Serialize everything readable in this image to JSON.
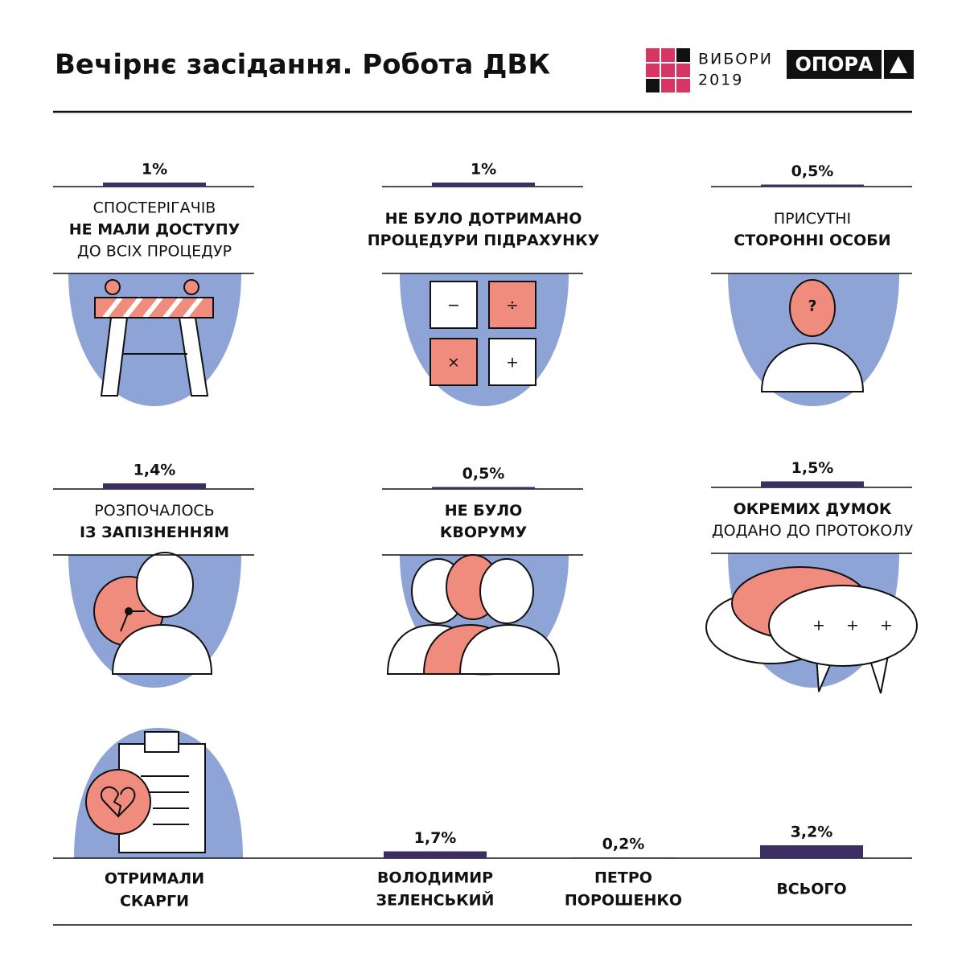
{
  "header": {
    "title": "Вечірнє засідання. Робота ДВК",
    "logo_line1": "ВИБОРИ",
    "logo_line2": "2019",
    "brand": "ОПОРА"
  },
  "items": [
    {
      "value": 1,
      "value_label": "1%",
      "lines": [
        "СПОСТЕРІГАЧІВ",
        "НЕ МАЛИ ДОСТУПУ",
        "ДО ВСІХ ПРОЦЕДУР"
      ],
      "bold": [
        false,
        true,
        false
      ]
    },
    {
      "value": 1,
      "value_label": "1%",
      "lines": [
        "НЕ БУЛО ДОТРИМАНО",
        "ПРОЦЕДУРИ ПІДРАХУНКУ"
      ],
      "bold": [
        true,
        true
      ]
    },
    {
      "value": 0.5,
      "value_label": "0,5%",
      "lines": [
        "ПРИСУТНІ",
        "СТОРОННІ ОСОБИ"
      ],
      "bold": [
        false,
        true
      ]
    },
    {
      "value": 1.4,
      "value_label": "1,4%",
      "lines": [
        "РОЗПОЧАЛОСЬ",
        "ІЗ ЗАПІЗНЕННЯМ"
      ],
      "bold": [
        false,
        true
      ]
    },
    {
      "value": 0.5,
      "value_label": "0,5%",
      "lines": [
        "НЕ БУЛО",
        "КВОРУМУ"
      ],
      "bold": [
        true,
        true
      ]
    },
    {
      "value": 1.5,
      "value_label": "1,5%",
      "lines": [
        "ОКРЕМИХ ДУМОК",
        "ДОДАНО ДО ПРОТОКОЛУ"
      ],
      "bold": [
        true,
        false
      ]
    }
  ],
  "complaints": {
    "lines": [
      "ОТРИМАЛИ",
      "СКАРГИ"
    ],
    "breakdown": [
      {
        "value": 1.7,
        "value_label": "1,7%",
        "lines": [
          "ВОЛОДИМИР",
          "ЗЕЛЕНСЬКИЙ"
        ]
      },
      {
        "value": 0.2,
        "value_label": "0,2%",
        "lines": [
          "ПЕТРО",
          "ПОРОШЕНКО"
        ]
      },
      {
        "value": 3.2,
        "value_label": "3,2%",
        "lines": [
          "ВСЬОГО"
        ]
      }
    ]
  }
}
